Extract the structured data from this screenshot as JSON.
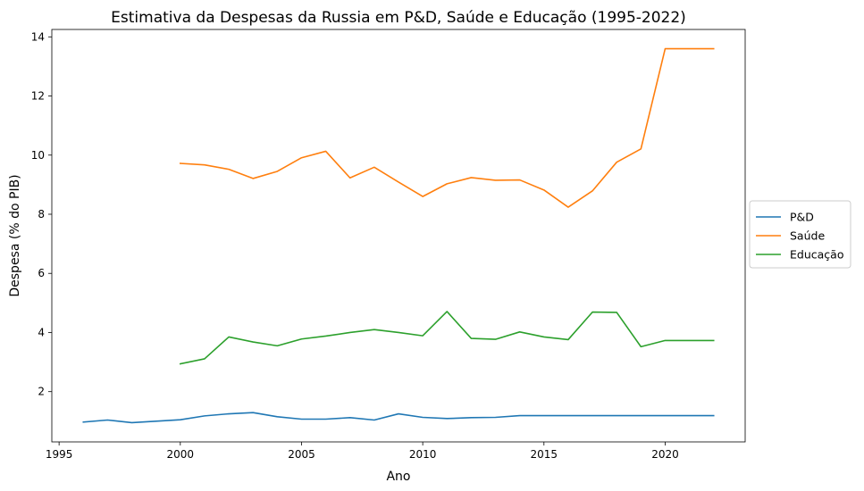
{
  "chart_data": {
    "type": "line",
    "title": "Estimativa da Despesas da Russia em P&D, Saúde e Educação (1995-2022)",
    "xlabel": "Ano",
    "ylabel": "Despesa (% do PIB)",
    "xlim": [
      1994.7,
      2023.3
    ],
    "ylim": [
      0.3,
      14.25
    ],
    "xticks": [
      1995,
      2000,
      2005,
      2010,
      2015,
      2020
    ],
    "yticks": [
      2,
      4,
      6,
      8,
      10,
      12,
      14
    ],
    "grid": false,
    "legend_position": "right",
    "series": [
      {
        "name": "P&D",
        "color": "#1f77b4",
        "x": [
          1996,
          1997,
          1998,
          1999,
          2000,
          2001,
          2002,
          2003,
          2004,
          2005,
          2006,
          2007,
          2008,
          2009,
          2010,
          2011,
          2012,
          2013,
          2014,
          2015,
          2016,
          2017,
          2018,
          2019,
          2020,
          2021,
          2022
        ],
        "values": [
          0.97,
          1.04,
          0.95,
          1.0,
          1.05,
          1.18,
          1.25,
          1.29,
          1.15,
          1.07,
          1.07,
          1.12,
          1.04,
          1.25,
          1.13,
          1.09,
          1.12,
          1.13,
          1.19,
          1.19,
          1.19,
          1.19,
          1.19,
          1.19,
          1.19,
          1.19,
          1.19
        ]
      },
      {
        "name": "Saúde",
        "color": "#ff7f0e",
        "x": [
          2000,
          2001,
          2002,
          2003,
          2004,
          2005,
          2006,
          2007,
          2008,
          2009,
          2010,
          2011,
          2012,
          2013,
          2014,
          2015,
          2016,
          2017,
          2018,
          2019,
          2020,
          2021,
          2022
        ],
        "values": [
          9.72,
          9.67,
          9.52,
          9.21,
          9.45,
          9.91,
          10.13,
          9.23,
          9.59,
          9.09,
          8.6,
          9.03,
          9.24,
          9.15,
          9.16,
          8.82,
          8.24,
          8.79,
          9.76,
          10.21,
          13.6,
          13.6,
          13.6
        ]
      },
      {
        "name": "Educação",
        "color": "#2ca02c",
        "x": [
          2000,
          2001,
          2002,
          2003,
          2004,
          2005,
          2006,
          2007,
          2008,
          2009,
          2010,
          2011,
          2012,
          2013,
          2014,
          2015,
          2016,
          2017,
          2018,
          2019,
          2020,
          2021,
          2022
        ],
        "values": [
          2.94,
          3.11,
          3.85,
          3.68,
          3.55,
          3.78,
          3.88,
          4.0,
          4.1,
          4.0,
          3.89,
          4.71,
          3.8,
          3.77,
          4.02,
          3.85,
          3.76,
          4.69,
          4.68,
          3.52,
          3.73,
          3.73,
          3.73
        ]
      }
    ]
  }
}
